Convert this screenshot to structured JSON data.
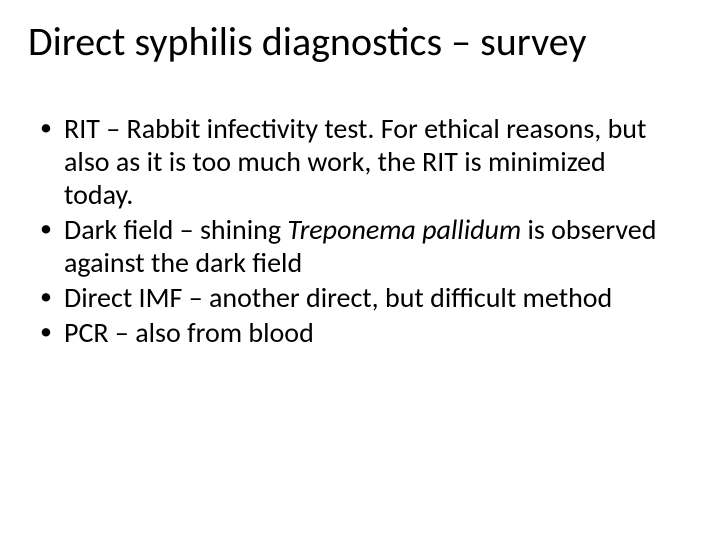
{
  "slide": {
    "background_color": "#ffffff",
    "text_color": "#000000",
    "title": {
      "text": "Direct syphilis diagnostics  – survey",
      "font_size_pt": 40,
      "font_weight": 400
    },
    "body": {
      "font_size_pt": 28,
      "bullet_char": "•",
      "items": [
        {
          "runs": [
            {
              "text": "RIT – Rabbit infectivity test. For ethical reasons, but also as it is too much work, the RIT is minimized today.",
              "italic": false
            }
          ]
        },
        {
          "runs": [
            {
              "text": "Dark field – shining ",
              "italic": false
            },
            {
              "text": "Treponema pallidum",
              "italic": true
            },
            {
              "text": " is observed against the dark field",
              "italic": false
            }
          ]
        },
        {
          "runs": [
            {
              "text": "Direct IMF – another direct, but difficult method",
              "italic": false
            }
          ]
        },
        {
          "runs": [
            {
              "text": "PCR – also from blood",
              "italic": false
            }
          ]
        }
      ]
    }
  }
}
